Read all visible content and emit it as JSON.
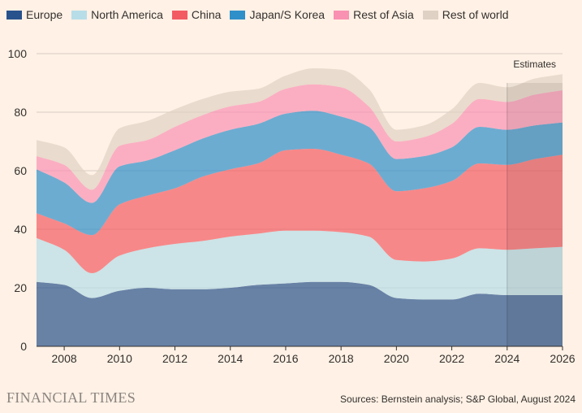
{
  "chart_data": {
    "type": "area",
    "stacked": true,
    "x": [
      2007,
      2008,
      2009,
      2010,
      2011,
      2012,
      2013,
      2014,
      2015,
      2016,
      2017,
      2018,
      2019,
      2020,
      2021,
      2022,
      2023,
      2024,
      2025,
      2026
    ],
    "series": [
      {
        "name": "Europe",
        "color": "#28528c",
        "values": [
          22,
          21,
          16.5,
          19,
          20,
          19.5,
          19.5,
          20,
          21,
          21.5,
          22,
          22,
          21,
          16.5,
          16,
          16,
          18,
          17.5,
          17.5,
          17.5
        ]
      },
      {
        "name": "North America",
        "color": "#b7dde8",
        "values": [
          15,
          12,
          8.5,
          12,
          13.5,
          15.5,
          16.5,
          17.5,
          17.5,
          18,
          17.5,
          17,
          16.5,
          13,
          13,
          14,
          15.5,
          15.5,
          16,
          16.5
        ]
      },
      {
        "name": "China",
        "color": "#f35b63",
        "values": [
          8.5,
          9,
          13,
          17.5,
          18,
          19,
          22,
          23,
          24,
          27.5,
          28,
          26.5,
          25,
          23.5,
          25,
          26.5,
          29,
          29,
          30.5,
          31.5
        ]
      },
      {
        "name": "Japan/S Korea",
        "color": "#2f8fc9",
        "values": [
          15,
          14,
          11,
          13,
          12,
          13,
          13,
          13.5,
          13.5,
          12.5,
          13,
          13,
          12.5,
          11,
          11,
          11.5,
          12.5,
          12,
          11.5,
          11
        ]
      },
      {
        "name": "Rest of Asia",
        "color": "#f991b3",
        "values": [
          4.5,
          6,
          4.5,
          7,
          7,
          8,
          8,
          8,
          7.5,
          8.5,
          9,
          10,
          7,
          6,
          6.5,
          8,
          9.5,
          9.5,
          10.5,
          11
        ]
      },
      {
        "name": "Rest of world",
        "color": "#dfd1c3",
        "values": [
          5.5,
          6,
          5,
          6,
          6.5,
          6,
          5.5,
          5,
          4.5,
          4.5,
          5.5,
          6,
          6,
          4,
          4,
          5,
          5.5,
          5,
          5.5,
          5.5
        ]
      }
    ],
    "ylim": [
      0,
      100
    ],
    "yticks": [
      0,
      20,
      40,
      60,
      80,
      100
    ],
    "xlim": [
      2007,
      2026
    ],
    "xticks": [
      2008,
      2010,
      2012,
      2014,
      2016,
      2018,
      2020,
      2022,
      2024,
      2026
    ],
    "grid": "horizontal",
    "legend_position": "top",
    "estimates_from": 2024,
    "estimates_label": "Estimates"
  },
  "footer": {
    "logo_text": "FINANCIAL TIMES",
    "source": "Sources: Bernstein analysis; S&P Global, August 2024"
  }
}
